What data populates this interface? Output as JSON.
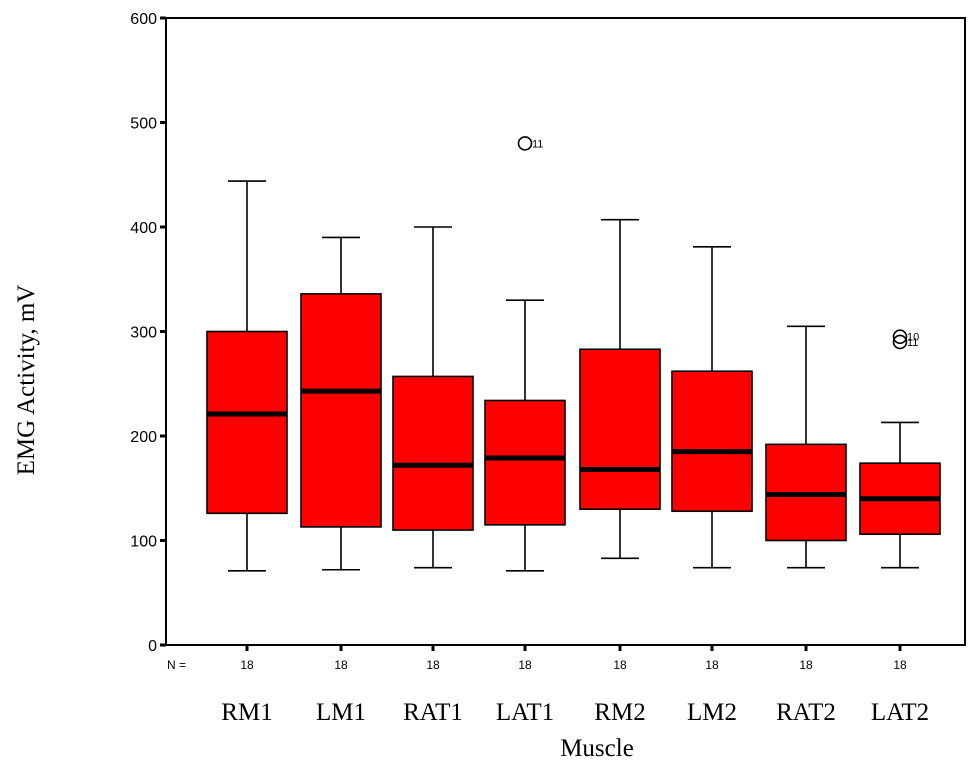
{
  "chart_data": {
    "type": "boxplot",
    "xlabel": "Muscle",
    "ylabel": "EMG Activity,  mV",
    "ylim": [
      0,
      600
    ],
    "yticks": [
      0,
      100,
      200,
      300,
      400,
      500,
      600
    ],
    "n_prefix": "N =",
    "categories": [
      "RM1",
      "LM1",
      "RAT1",
      "LAT1",
      "RM2",
      "LM2",
      "RAT2",
      "LAT2"
    ],
    "n": [
      18,
      18,
      18,
      18,
      18,
      18,
      18,
      18
    ],
    "boxes": [
      {
        "min": 71,
        "q1": 126,
        "median": 221,
        "q3": 300,
        "max": 444,
        "outliers": []
      },
      {
        "min": 72,
        "q1": 113,
        "median": 243,
        "q3": 336,
        "max": 390,
        "outliers": []
      },
      {
        "min": 74,
        "q1": 110,
        "median": 172,
        "q3": 257,
        "max": 400,
        "outliers": []
      },
      {
        "min": 71,
        "q1": 115,
        "median": 179,
        "q3": 234,
        "max": 330,
        "outliers": [
          {
            "value": 480,
            "label": "11"
          }
        ]
      },
      {
        "min": 83,
        "q1": 130,
        "median": 168,
        "q3": 283,
        "max": 407,
        "outliers": []
      },
      {
        "min": 74,
        "q1": 128,
        "median": 185,
        "q3": 262,
        "max": 381,
        "outliers": []
      },
      {
        "min": 74,
        "q1": 100,
        "median": 144,
        "q3": 192,
        "max": 305,
        "outliers": []
      },
      {
        "min": 74,
        "q1": 106,
        "median": 140,
        "q3": 174,
        "max": 213,
        "outliers": [
          {
            "value": 295,
            "label": "10"
          },
          {
            "value": 290,
            "label": "11"
          }
        ]
      }
    ],
    "box_color": "#ff0000",
    "grid": false,
    "legend": "none"
  }
}
